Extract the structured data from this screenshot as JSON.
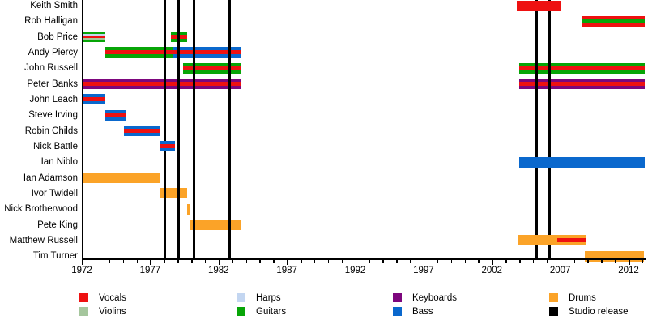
{
  "chart_data": {
    "type": "timeline",
    "title": "Band members timeline (top of chart cropped; no title visible)",
    "xlabel": "",
    "ylabel": "",
    "x_axis": {
      "start_year": 1972,
      "end_year": 2013.2,
      "major_tick_years": [
        1972,
        1977,
        1982,
        1987,
        1992,
        1997,
        2002,
        2007,
        2012
      ],
      "minor_tick_interval_years": 1,
      "grid": false
    },
    "colors": {
      "vocals": "#ee1111",
      "violins": "#a5c69d",
      "harps": "#c3d6f1",
      "guitars": "#07a507",
      "keyboards": "#7d067d",
      "bass": "#0a68cd",
      "drums": "#fba328",
      "studio_release": "#000000"
    },
    "release_line_positions": [
      1978.05,
      1979.1,
      1980.2,
      1982.8,
      2005.3,
      2006.25
    ],
    "members": [
      {
        "name": "Keith Smith",
        "bars": [
          {
            "from": 2003.8,
            "to": 2007.1,
            "stripes": [
              [
                "vocals",
                1
              ]
            ],
            "above_lines": true
          }
        ]
      },
      {
        "name": "Rob Halligan",
        "bars": [
          {
            "from": 2008.6,
            "to": 2013.2,
            "stripes": [
              [
                "vocals",
                4
              ],
              [
                "guitars",
                4
              ],
              [
                "vocals",
                5
              ]
            ]
          }
        ]
      },
      {
        "name": "Bob Price",
        "bars": [
          {
            "from": 1972,
            "to": 1973.7,
            "stripes": [
              [
                "guitars",
                3
              ],
              [
                "harps",
                2
              ],
              [
                "vocals",
                3
              ],
              [
                "violins",
                2
              ],
              [
                "guitars",
                3
              ]
            ]
          },
          {
            "from": 1978.5,
            "to": 1979.7,
            "stripes": [
              [
                "guitars",
                4
              ],
              [
                "vocals",
                5
              ],
              [
                "guitars",
                4
              ]
            ]
          }
        ]
      },
      {
        "name": "Andy Piercy",
        "bars": [
          {
            "from": 1973.7,
            "to": 1978.7,
            "stripes": [
              [
                "guitars",
                4
              ],
              [
                "vocals",
                5
              ],
              [
                "guitars",
                4
              ]
            ]
          },
          {
            "from": 1978.7,
            "to": 1983.7,
            "stripes": [
              [
                "bass",
                4
              ],
              [
                "vocals",
                5
              ],
              [
                "bass",
                4
              ]
            ]
          }
        ]
      },
      {
        "name": "John Russell",
        "bars": [
          {
            "from": 1979.4,
            "to": 1983.7,
            "stripes": [
              [
                "guitars",
                4
              ],
              [
                "vocals",
                5
              ],
              [
                "guitars",
                4
              ]
            ]
          },
          {
            "from": 2004,
            "to": 2013.2,
            "stripes": [
              [
                "guitars",
                4
              ],
              [
                "vocals",
                5
              ],
              [
                "guitars",
                4
              ]
            ]
          }
        ]
      },
      {
        "name": "Peter Banks",
        "bars": [
          {
            "from": 1972,
            "to": 1983.7,
            "stripes": [
              [
                "keyboards",
                4
              ],
              [
                "vocals",
                5
              ],
              [
                "keyboards",
                4
              ]
            ]
          },
          {
            "from": 2004,
            "to": 2013.2,
            "stripes": [
              [
                "keyboards",
                4
              ],
              [
                "vocals",
                5
              ],
              [
                "keyboards",
                4
              ]
            ]
          }
        ]
      },
      {
        "name": "John Leach",
        "bars": [
          {
            "from": 1972,
            "to": 1973.7,
            "stripes": [
              [
                "bass",
                4
              ],
              [
                "vocals",
                5
              ],
              [
                "bass",
                4
              ]
            ]
          }
        ]
      },
      {
        "name": "Steve Irving",
        "bars": [
          {
            "from": 1973.7,
            "to": 1975.2,
            "stripes": [
              [
                "bass",
                4
              ],
              [
                "vocals",
                5
              ],
              [
                "bass",
                4
              ]
            ]
          }
        ]
      },
      {
        "name": "Robin Childs",
        "bars": [
          {
            "from": 1975.1,
            "to": 1977.7,
            "stripes": [
              [
                "bass",
                4
              ],
              [
                "vocals",
                5
              ],
              [
                "bass",
                4
              ]
            ]
          }
        ]
      },
      {
        "name": "Nick Battle",
        "bars": [
          {
            "from": 1977.7,
            "to": 1978.8,
            "stripes": [
              [
                "bass",
                4
              ],
              [
                "vocals",
                5
              ],
              [
                "bass",
                4
              ]
            ],
            "above_lines": true
          }
        ]
      },
      {
        "name": "Ian Niblo",
        "bars": [
          {
            "from": 2004,
            "to": 2013.2,
            "stripes": [
              [
                "bass",
                1
              ]
            ],
            "above_lines": true
          }
        ]
      },
      {
        "name": "Ian Adamson",
        "bars": [
          {
            "from": 1972,
            "to": 1977.7,
            "stripes": [
              [
                "drums",
                1
              ]
            ]
          }
        ]
      },
      {
        "name": "Ivor Twidell",
        "bars": [
          {
            "from": 1977.7,
            "to": 1979.7,
            "stripes": [
              [
                "drums",
                1
              ]
            ]
          }
        ]
      },
      {
        "name": "Nick Brotherwood",
        "bars": [
          {
            "from": 1979.7,
            "to": 1979.9,
            "stripes": [
              [
                "drums",
                1
              ]
            ]
          }
        ]
      },
      {
        "name": "Pete King",
        "bars": [
          {
            "from": 1979.9,
            "to": 1983.7,
            "stripes": [
              [
                "drums",
                1
              ]
            ]
          }
        ]
      },
      {
        "name": "Matthew Russell",
        "bars": [
          {
            "from": 2003.9,
            "to": 2008.9,
            "stripes": [
              [
                "drums",
                1
              ]
            ],
            "above_lines": true,
            "overlay": {
              "from": 2006.8,
              "to": 2008.85,
              "role": "vocals"
            }
          }
        ]
      },
      {
        "name": "Tim Turner",
        "bars": [
          {
            "from": 2008.8,
            "to": 2013.1,
            "stripes": [
              [
                "drums",
                1
              ]
            ]
          }
        ]
      }
    ],
    "legend": {
      "position": "bottom",
      "columns": [
        [
          {
            "label": "Vocals",
            "role": "vocals"
          },
          {
            "label": "Violins",
            "role": "violins"
          }
        ],
        [
          {
            "label": "Harps",
            "role": "harps"
          },
          {
            "label": "Guitars",
            "role": "guitars"
          }
        ],
        [
          {
            "label": "Keyboards",
            "role": "keyboards"
          },
          {
            "label": "Bass",
            "role": "bass"
          }
        ],
        [
          {
            "label": "Drums",
            "role": "drums"
          },
          {
            "label": "Studio release",
            "role": "studio_release"
          }
        ]
      ]
    }
  }
}
